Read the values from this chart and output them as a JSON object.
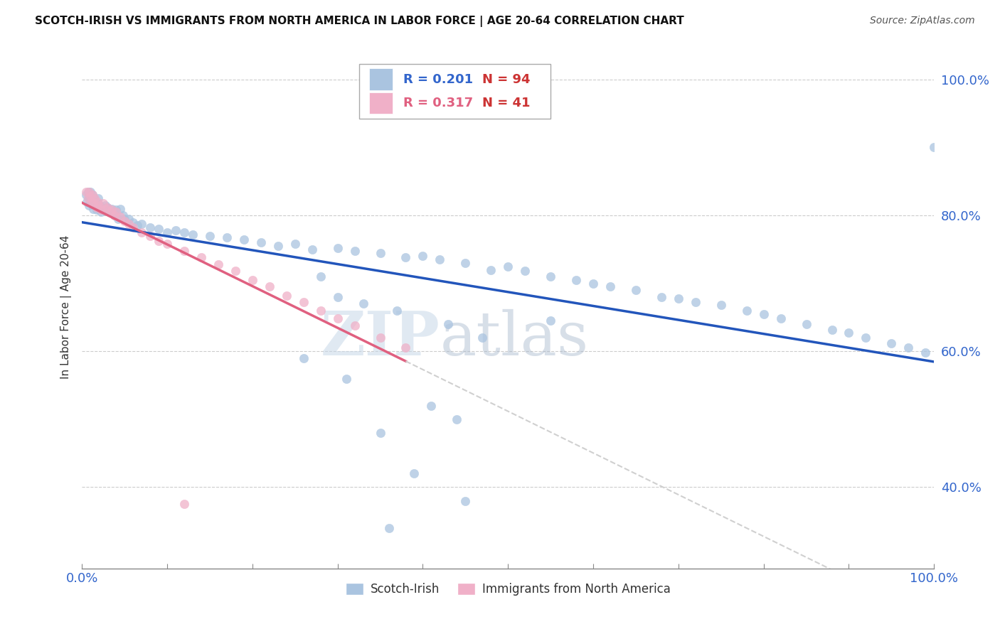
{
  "title": "SCOTCH-IRISH VS IMMIGRANTS FROM NORTH AMERICA IN LABOR FORCE | AGE 20-64 CORRELATION CHART",
  "source": "Source: ZipAtlas.com",
  "ylabel": "In Labor Force | Age 20-64",
  "xlim": [
    0.0,
    1.0
  ],
  "ylim_low": 0.28,
  "ylim_high": 1.05,
  "ytick_labels": [
    "40.0%",
    "60.0%",
    "80.0%",
    "100.0%"
  ],
  "ytick_positions": [
    0.4,
    0.6,
    0.8,
    1.0
  ],
  "grid_color": "#cccccc",
  "background_color": "#ffffff",
  "watermark_zip": "ZIP",
  "watermark_atlas": "atlas",
  "blue_color": "#aac4e0",
  "pink_color": "#f0b0c8",
  "blue_line_color": "#2255bb",
  "pink_line_color": "#e06080",
  "pink_line_dashed_color": "#d0d0d0",
  "legend_R_blue": "0.201",
  "legend_N_blue": "94",
  "legend_R_pink": "0.317",
  "legend_N_pink": "41",
  "legend_value_color_blue": "#3366cc",
  "legend_value_color_pink": "#e06080",
  "legend_N_color": "#cc3333",
  "tick_color": "#3366cc",
  "blue_x": [
    0.005,
    0.006,
    0.007,
    0.008,
    0.008,
    0.009,
    0.01,
    0.01,
    0.011,
    0.012,
    0.013,
    0.014,
    0.015,
    0.016,
    0.017,
    0.018,
    0.019,
    0.02,
    0.021,
    0.022,
    0.023,
    0.025,
    0.027,
    0.03,
    0.032,
    0.035,
    0.038,
    0.04,
    0.042,
    0.045,
    0.048,
    0.05,
    0.055,
    0.06,
    0.065,
    0.07,
    0.08,
    0.09,
    0.1,
    0.11,
    0.12,
    0.13,
    0.15,
    0.17,
    0.19,
    0.21,
    0.23,
    0.25,
    0.27,
    0.3,
    0.32,
    0.35,
    0.38,
    0.4,
    0.42,
    0.45,
    0.48,
    0.5,
    0.52,
    0.55,
    0.58,
    0.6,
    0.62,
    0.65,
    0.68,
    0.7,
    0.72,
    0.75,
    0.78,
    0.8,
    0.82,
    0.85,
    0.88,
    0.9,
    0.92,
    0.95,
    0.97,
    0.99,
    1.0,
    0.55,
    0.3,
    0.33,
    0.43,
    0.47,
    0.37,
    0.28,
    0.35,
    0.39,
    0.45,
    0.41,
    0.31,
    0.26,
    0.36,
    0.44
  ],
  "blue_y": [
    0.83,
    0.82,
    0.835,
    0.825,
    0.815,
    0.828,
    0.835,
    0.822,
    0.818,
    0.83,
    0.81,
    0.825,
    0.815,
    0.82,
    0.808,
    0.818,
    0.825,
    0.81,
    0.815,
    0.805,
    0.812,
    0.808,
    0.815,
    0.812,
    0.805,
    0.81,
    0.8,
    0.808,
    0.795,
    0.81,
    0.8,
    0.795,
    0.795,
    0.79,
    0.785,
    0.788,
    0.782,
    0.78,
    0.775,
    0.778,
    0.775,
    0.772,
    0.77,
    0.768,
    0.765,
    0.76,
    0.755,
    0.758,
    0.75,
    0.752,
    0.748,
    0.745,
    0.738,
    0.74,
    0.735,
    0.73,
    0.72,
    0.725,
    0.718,
    0.71,
    0.705,
    0.7,
    0.695,
    0.69,
    0.68,
    0.678,
    0.672,
    0.668,
    0.66,
    0.655,
    0.648,
    0.64,
    0.632,
    0.628,
    0.62,
    0.612,
    0.605,
    0.598,
    0.9,
    0.645,
    0.68,
    0.67,
    0.64,
    0.62,
    0.66,
    0.71,
    0.48,
    0.42,
    0.38,
    0.52,
    0.56,
    0.59,
    0.34,
    0.5
  ],
  "pink_x": [
    0.005,
    0.007,
    0.008,
    0.01,
    0.011,
    0.012,
    0.013,
    0.015,
    0.017,
    0.018,
    0.02,
    0.022,
    0.025,
    0.028,
    0.03,
    0.033,
    0.035,
    0.038,
    0.04,
    0.045,
    0.05,
    0.055,
    0.06,
    0.07,
    0.08,
    0.09,
    0.1,
    0.12,
    0.14,
    0.16,
    0.18,
    0.2,
    0.22,
    0.24,
    0.26,
    0.28,
    0.3,
    0.32,
    0.35,
    0.38,
    0.12
  ],
  "pink_y": [
    0.835,
    0.825,
    0.835,
    0.828,
    0.82,
    0.83,
    0.818,
    0.825,
    0.812,
    0.82,
    0.815,
    0.808,
    0.818,
    0.81,
    0.812,
    0.805,
    0.808,
    0.8,
    0.805,
    0.798,
    0.792,
    0.788,
    0.782,
    0.775,
    0.77,
    0.762,
    0.758,
    0.748,
    0.738,
    0.728,
    0.718,
    0.705,
    0.695,
    0.682,
    0.672,
    0.66,
    0.648,
    0.638,
    0.62,
    0.605,
    0.375
  ]
}
